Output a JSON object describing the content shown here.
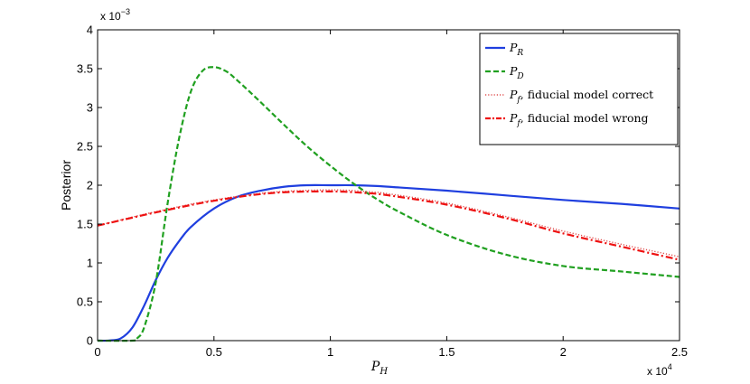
{
  "chart_data": {
    "type": "line",
    "xlabel": "P_H",
    "ylabel": "Posterior",
    "x_multiplier": "x 10^4",
    "y_multiplier": "x 10^-3",
    "xlim": [
      0,
      25000
    ],
    "ylim": [
      0,
      0.004
    ],
    "x_ticks": [
      0,
      5000,
      10000,
      15000,
      20000,
      25000
    ],
    "x_tick_labels": [
      "0",
      "0.5",
      "1",
      "1.5",
      "2",
      "2.5"
    ],
    "y_ticks": [
      0,
      0.0005,
      0.001,
      0.0015,
      0.002,
      0.0025,
      0.003,
      0.0035,
      0.004
    ],
    "y_tick_labels": [
      "0",
      "0.5",
      "1",
      "1.5",
      "2",
      "2.5",
      "3",
      "3.5",
      "4"
    ],
    "grid": false,
    "legend_position": "top-right",
    "series": [
      {
        "name": "P_R",
        "legend_suffix": "",
        "color": "#1f3fdf",
        "style": "solid",
        "x": [
          0,
          500,
          1000,
          1500,
          2000,
          2500,
          3000,
          3500,
          4000,
          5000,
          6000,
          7000,
          8000,
          9000,
          10000,
          11000,
          12000,
          13000,
          15000,
          17500,
          20000,
          22500,
          25000
        ],
        "y": [
          0,
          2e-06,
          3e-05,
          0.00017,
          0.00045,
          0.00078,
          0.00106,
          0.00128,
          0.00146,
          0.0017,
          0.00185,
          0.00193,
          0.00198,
          0.002,
          0.002,
          0.002,
          0.00199,
          0.00197,
          0.00193,
          0.00187,
          0.00181,
          0.00176,
          0.0017
        ]
      },
      {
        "name": "P_D",
        "legend_suffix": "",
        "color": "#20a020",
        "style": "dashed",
        "x": [
          0,
          1500,
          1700,
          2000,
          2500,
          3000,
          3500,
          4000,
          4500,
          5000,
          5500,
          6000,
          7000,
          8000,
          9000,
          10000,
          11000,
          12000,
          13000,
          15000,
          17500,
          20000,
          22500,
          25000
        ],
        "y": [
          0,
          0,
          3e-05,
          0.00017,
          0.00075,
          0.00175,
          0.0026,
          0.0032,
          0.00347,
          0.00352,
          0.00347,
          0.00335,
          0.00307,
          0.00278,
          0.0025,
          0.00225,
          0.00202,
          0.00182,
          0.00165,
          0.00136,
          0.00111,
          0.00096,
          0.00089,
          0.00082
        ]
      },
      {
        "name": "P_f",
        "legend_suffix": ", fiducial model correct",
        "color": "#e05050",
        "style": "dotted",
        "x": [
          0,
          2500,
          5000,
          7500,
          10000,
          11500,
          12500,
          15000,
          17500,
          20000,
          22500,
          25000
        ],
        "y": [
          0.00148,
          0.00166,
          0.00181,
          0.00191,
          0.00194,
          0.00192,
          0.00189,
          0.00177,
          0.0016,
          0.00141,
          0.00124,
          0.00108
        ]
      },
      {
        "name": "P_f",
        "legend_suffix": ", fiducial model wrong",
        "color": "#ee1111",
        "style": "dashdot",
        "x": [
          0,
          2500,
          5000,
          7500,
          10000,
          11500,
          12500,
          15000,
          17500,
          20000,
          22500,
          25000
        ],
        "y": [
          0.00148,
          0.00165,
          0.0018,
          0.0019,
          0.00192,
          0.0019,
          0.00187,
          0.00175,
          0.00158,
          0.00138,
          0.00121,
          0.00104
        ]
      }
    ]
  }
}
